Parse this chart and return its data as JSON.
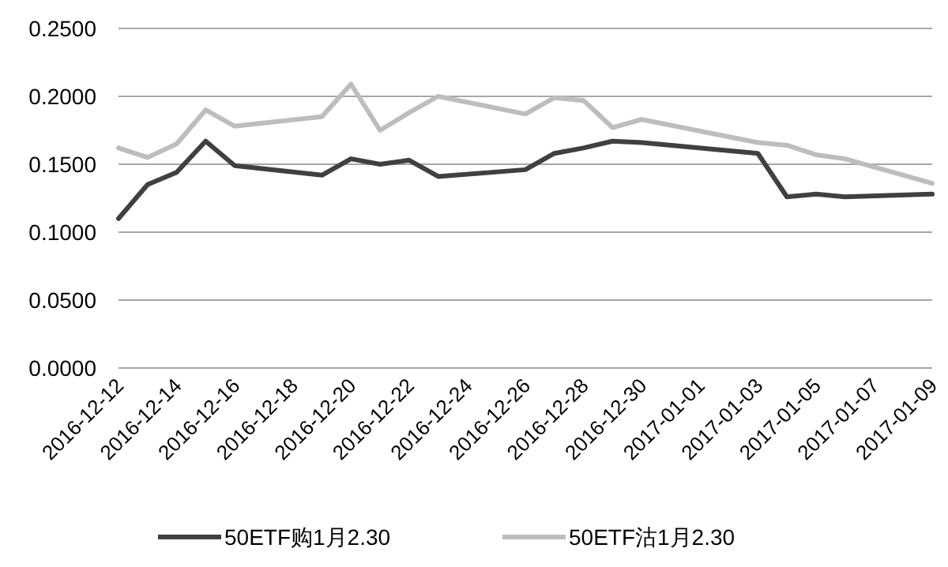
{
  "chart_data": {
    "type": "line",
    "x": [
      "2016-12-12",
      "2016-12-13",
      "2016-12-14",
      "2016-12-15",
      "2016-12-16",
      "2016-12-19",
      "2016-12-20",
      "2016-12-21",
      "2016-12-22",
      "2016-12-23",
      "2016-12-26",
      "2016-12-27",
      "2016-12-28",
      "2016-12-29",
      "2016-12-30",
      "2017-01-03",
      "2017-01-04",
      "2017-01-05",
      "2017-01-06",
      "2017-01-09"
    ],
    "series": [
      {
        "name": "50ETF购1月2.30",
        "color": "#404040",
        "values": [
          0.11,
          0.135,
          0.144,
          0.167,
          0.149,
          0.142,
          0.154,
          0.15,
          0.153,
          0.141,
          0.146,
          0.158,
          0.162,
          0.167,
          0.166,
          0.158,
          0.126,
          0.128,
          0.126,
          0.128
        ]
      },
      {
        "name": "50ETF沽1月2.30",
        "color": "#bdbdbd",
        "values": [
          0.162,
          0.155,
          0.165,
          0.19,
          0.178,
          0.185,
          0.209,
          0.175,
          0.188,
          0.2,
          0.187,
          0.199,
          0.197,
          0.177,
          0.183,
          0.166,
          0.164,
          0.157,
          0.154,
          0.136
        ]
      }
    ],
    "xlim": [
      "2016-12-12",
      "2017-01-09"
    ],
    "xticks": [
      "2016-12-12",
      "2016-12-14",
      "2016-12-16",
      "2016-12-18",
      "2016-12-20",
      "2016-12-22",
      "2016-12-24",
      "2016-12-26",
      "2016-12-28",
      "2016-12-30",
      "2017-01-01",
      "2017-01-03",
      "2017-01-05",
      "2017-01-07",
      "2017-01-09"
    ],
    "ylim": [
      0,
      0.25
    ],
    "yticks": [
      {
        "value": 0,
        "label": "0.0000"
      },
      {
        "value": 0.05,
        "label": "0.0500"
      },
      {
        "value": 0.1,
        "label": "0.1000"
      },
      {
        "value": 0.15,
        "label": "0.1500"
      },
      {
        "value": 0.2,
        "label": "0.2000"
      },
      {
        "value": 0.25,
        "label": "0.2500"
      }
    ],
    "grid": "y",
    "legend": "bottom",
    "marker": "none",
    "line_style": "solid"
  }
}
